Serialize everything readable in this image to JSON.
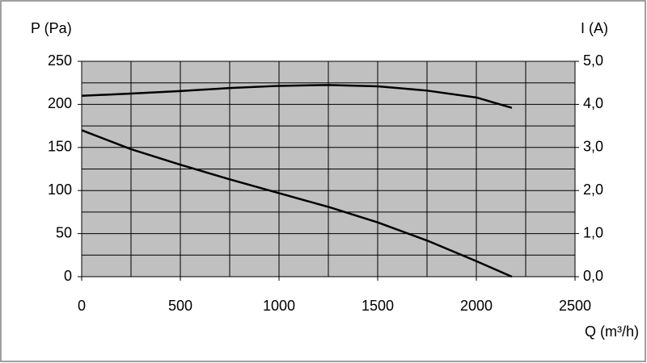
{
  "chart_data": {
    "type": "line",
    "y_label": "P (Pa)",
    "y2_label": "I (A)",
    "x_label": "Q (m³/h)",
    "xlim": [
      0,
      2500
    ],
    "xticks": [
      0,
      500,
      1000,
      1500,
      2000,
      2500
    ],
    "ylim": [
      0,
      250
    ],
    "yticks": [
      0,
      50,
      100,
      150,
      200,
      250
    ],
    "y2lim": [
      0,
      5
    ],
    "y2ticks": [
      {
        "value": 0,
        "label": "0,0"
      },
      {
        "value": 1,
        "label": "1,0"
      },
      {
        "value": 2,
        "label": "2,0"
      },
      {
        "value": 3,
        "label": "3,0"
      },
      {
        "value": 4,
        "label": "4,0"
      },
      {
        "value": 5,
        "label": "5,0"
      }
    ],
    "x_grid": [
      0,
      250,
      500,
      750,
      1000,
      1250,
      1500,
      1750,
      2000,
      2250,
      2500
    ],
    "y_grid": [
      0,
      25,
      50,
      75,
      100,
      125,
      150,
      175,
      200,
      225,
      250
    ],
    "plot_background": "#c0c0c0",
    "series": [
      {
        "color": "#000000",
        "x": [
          0,
          250,
          500,
          750,
          1000,
          1250,
          1500,
          1750,
          2000,
          2180
        ],
        "values": [
          170,
          148,
          130,
          113,
          97,
          81,
          63,
          42,
          18,
          0
        ]
      },
      {
        "color": "#000000",
        "axis": "y2",
        "x": [
          0,
          250,
          500,
          750,
          1000,
          1250,
          1500,
          1750,
          2000,
          2180
        ],
        "values": [
          4.2,
          4.25,
          4.31,
          4.38,
          4.43,
          4.45,
          4.42,
          4.32,
          4.16,
          3.92
        ]
      }
    ]
  }
}
